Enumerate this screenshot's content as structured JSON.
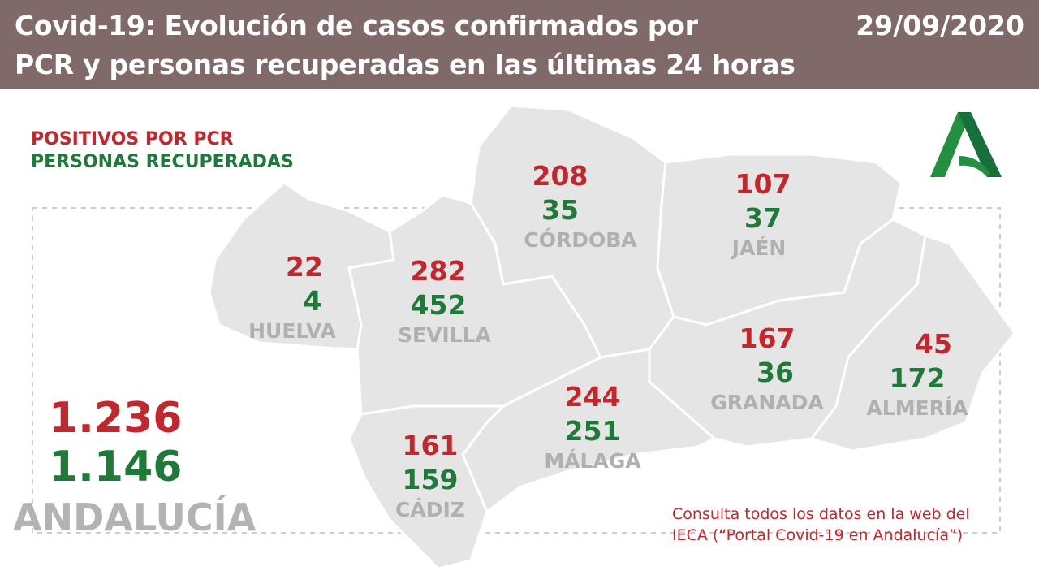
{
  "header": {
    "title_line1": "Covid-19: Evolución de casos confirmados por",
    "title_line2": "PCR y personas recuperadas en las últimas 24 horas",
    "date": "29/09/2020"
  },
  "legend": {
    "positives": "POSITIVOS POR PCR",
    "recovered": "PERSONAS RECUPERADAS"
  },
  "provinces": [
    {
      "name": "HUELVA",
      "positives": "22",
      "recovered": "4"
    },
    {
      "name": "SEVILLA",
      "positives": "282",
      "recovered": "452"
    },
    {
      "name": "CÓRDOBA",
      "positives": "208",
      "recovered": "35"
    },
    {
      "name": "JAÉN",
      "positives": "107",
      "recovered": "37"
    },
    {
      "name": "GRANADA",
      "positives": "167",
      "recovered": "36"
    },
    {
      "name": "ALMERÍA",
      "positives": "45",
      "recovered": "172"
    },
    {
      "name": "MÁLAGA",
      "positives": "244",
      "recovered": "251"
    },
    {
      "name": "CÁDIZ",
      "positives": "161",
      "recovered": "159"
    }
  ],
  "total": {
    "region": "ANDALUCÍA",
    "positives": "1.236",
    "recovered": "1.146"
  },
  "note": {
    "line1": "Consulta todos los datos en la web del",
    "line2": "IECA (“Portal Covid-19 en Andalucía”)"
  },
  "colors": {
    "header": "#7f6a69",
    "positive": "#c1272d",
    "recovered": "#1f7a3a",
    "map": "#e5e5e5"
  }
}
